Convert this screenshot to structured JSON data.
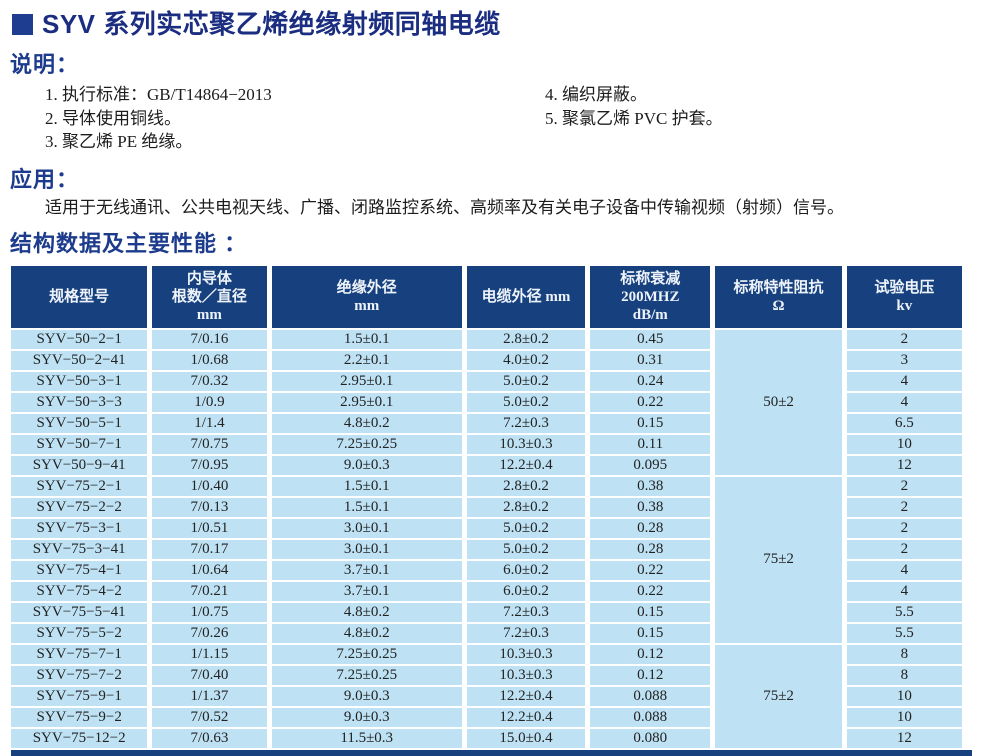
{
  "colors": {
    "navy_header": "#17417e",
    "cell_blue": "#bee2f4",
    "title_blue": "#1b2d80",
    "heading_blue": "#1c3b8d",
    "bullet_blue": "#1f3d90"
  },
  "title": "SYV 系列实芯聚乙烯绝缘射频同轴电缆",
  "notes": {
    "heading": "说明：",
    "left_items": [
      "1. 执行标准：GB/T14864−2013",
      "2. 导体使用铜线。",
      "3. 聚乙烯 PE 绝缘。"
    ],
    "right_items": [
      "4. 编织屏蔽。",
      "5. 聚氯乙烯 PVC 护套。"
    ]
  },
  "application": {
    "heading": "应用：",
    "text": "适用于无线通讯、公共电视天线、广播、闭路监控系统、高频率及有关电子设备中传输视频（射频）信号。"
  },
  "table_section_heading": "结构数据及主要性能 ：",
  "table": {
    "headers": [
      {
        "lines": [
          "规格型号"
        ]
      },
      {
        "lines": [
          "内导体",
          "根数／直径",
          "mm"
        ]
      },
      {
        "lines": [
          "绝缘外径",
          "mm"
        ]
      },
      {
        "lines": [
          "电缆外径 mm"
        ]
      },
      {
        "lines": [
          "标称衰减",
          "200MHZ",
          "dB/m"
        ]
      },
      {
        "lines": [
          "标称特性阻抗",
          "Ω"
        ]
      },
      {
        "lines": [
          "试验电压",
          "kv"
        ]
      }
    ],
    "groups": [
      {
        "impedance": "50±2",
        "rows": [
          {
            "model": "SYV−50−2−1",
            "conductor": "7/0.16",
            "insulation_od": "1.5±0.1",
            "cable_od": "2.8±0.2",
            "attenuation": "0.45",
            "test_voltage": "2"
          },
          {
            "model": "SYV−50−2−41",
            "conductor": "1/0.68",
            "insulation_od": "2.2±0.1",
            "cable_od": "4.0±0.2",
            "attenuation": "0.31",
            "test_voltage": "3"
          },
          {
            "model": "SYV−50−3−1",
            "conductor": "7/0.32",
            "insulation_od": "2.95±0.1",
            "cable_od": "5.0±0.2",
            "attenuation": "0.24",
            "test_voltage": "4"
          },
          {
            "model": "SYV−50−3−3",
            "conductor": "1/0.9",
            "insulation_od": "2.95±0.1",
            "cable_od": "5.0±0.2",
            "attenuation": "0.22",
            "test_voltage": "4"
          },
          {
            "model": "SYV−50−5−1",
            "conductor": "1/1.4",
            "insulation_od": "4.8±0.2",
            "cable_od": "7.2±0.3",
            "attenuation": "0.15",
            "test_voltage": "6.5"
          },
          {
            "model": "SYV−50−7−1",
            "conductor": "7/0.75",
            "insulation_od": "7.25±0.25",
            "cable_od": "10.3±0.3",
            "attenuation": "0.11",
            "test_voltage": "10"
          },
          {
            "model": "SYV−50−9−41",
            "conductor": "7/0.95",
            "insulation_od": "9.0±0.3",
            "cable_od": "12.2±0.4",
            "attenuation": "0.095",
            "test_voltage": "12"
          }
        ]
      },
      {
        "impedance": "75±2",
        "rows": [
          {
            "model": "SYV−75−2−1",
            "conductor": "1/0.40",
            "insulation_od": "1.5±0.1",
            "cable_od": "2.8±0.2",
            "attenuation": "0.38",
            "test_voltage": "2"
          },
          {
            "model": "SYV−75−2−2",
            "conductor": "7/0.13",
            "insulation_od": "1.5±0.1",
            "cable_od": "2.8±0.2",
            "attenuation": "0.38",
            "test_voltage": "2"
          },
          {
            "model": "SYV−75−3−1",
            "conductor": "1/0.51",
            "insulation_od": "3.0±0.1",
            "cable_od": "5.0±0.2",
            "attenuation": "0.28",
            "test_voltage": "2"
          },
          {
            "model": "SYV−75−3−41",
            "conductor": "7/0.17",
            "insulation_od": "3.0±0.1",
            "cable_od": "5.0±0.2",
            "attenuation": "0.28",
            "test_voltage": "2"
          },
          {
            "model": "SYV−75−4−1",
            "conductor": "1/0.64",
            "insulation_od": "3.7±0.1",
            "cable_od": "6.0±0.2",
            "attenuation": "0.22",
            "test_voltage": "4"
          },
          {
            "model": "SYV−75−4−2",
            "conductor": "7/0.21",
            "insulation_od": "3.7±0.1",
            "cable_od": "6.0±0.2",
            "attenuation": "0.22",
            "test_voltage": "4"
          },
          {
            "model": "SYV−75−5−41",
            "conductor": "1/0.75",
            "insulation_od": "4.8±0.2",
            "cable_od": "7.2±0.3",
            "attenuation": "0.15",
            "test_voltage": "5.5"
          },
          {
            "model": "SYV−75−5−2",
            "conductor": "7/0.26",
            "insulation_od": "4.8±0.2",
            "cable_od": "7.2±0.3",
            "attenuation": "0.15",
            "test_voltage": "5.5"
          }
        ]
      },
      {
        "impedance": "75±2",
        "rows": [
          {
            "model": "SYV−75−7−1",
            "conductor": "1/1.15",
            "insulation_od": "7.25±0.25",
            "cable_od": "10.3±0.3",
            "attenuation": "0.12",
            "test_voltage": "8"
          },
          {
            "model": "SYV−75−7−2",
            "conductor": "7/0.40",
            "insulation_od": "7.25±0.25",
            "cable_od": "10.3±0.3",
            "attenuation": "0.12",
            "test_voltage": "8"
          },
          {
            "model": "SYV−75−9−1",
            "conductor": "1/1.37",
            "insulation_od": "9.0±0.3",
            "cable_od": "12.2±0.4",
            "attenuation": "0.088",
            "test_voltage": "10"
          },
          {
            "model": "SYV−75−9−2",
            "conductor": "7/0.52",
            "insulation_od": "9.0±0.3",
            "cable_od": "12.2±0.4",
            "attenuation": "0.088",
            "test_voltage": "10"
          },
          {
            "model": "SYV−75−12−2",
            "conductor": "7/0.63",
            "insulation_od": "11.5±0.3",
            "cable_od": "15.0±0.4",
            "attenuation": "0.080",
            "test_voltage": "12"
          }
        ]
      }
    ]
  }
}
